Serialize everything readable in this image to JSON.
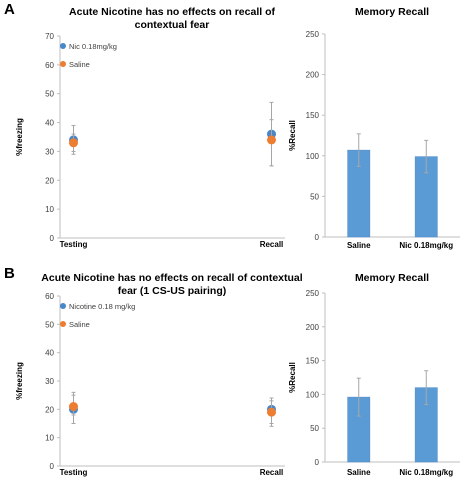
{
  "panels": [
    {
      "letter": "A"
    },
    {
      "letter": "B"
    }
  ],
  "colors": {
    "nicotine": "#4a86c8",
    "saline": "#ed7d31",
    "bar": "#5b9bd5",
    "bar_stroke": "#4a86c8",
    "error": "#a6a6a6",
    "axis": "#bfbfbf"
  },
  "chart_data": [
    {
      "id": "a-scatter",
      "type": "scatter",
      "title_lines": [
        "Acute Nicotine has no effects on recall of",
        "contextual fear"
      ],
      "xlabel": "",
      "ylabel": "%freezing",
      "ylim": [
        0,
        70
      ],
      "yticks": [
        0,
        10,
        20,
        30,
        40,
        50,
        60,
        70
      ],
      "categories": [
        "Testing",
        "Recall"
      ],
      "legend_position": "top-left",
      "series": [
        {
          "name": "Nic 0.18mg/kg",
          "color_key": "nicotine",
          "values": [
            34,
            36
          ],
          "err_low": [
            5,
            11
          ],
          "err_high": [
            5,
            11
          ]
        },
        {
          "name": "Saline",
          "color_key": "saline",
          "values": [
            33,
            34
          ],
          "err_low": [
            3,
            9
          ],
          "err_high": [
            3,
            7
          ]
        }
      ]
    },
    {
      "id": "a-bar",
      "type": "bar",
      "title_lines": [
        "Memory Recall"
      ],
      "xlabel": "",
      "ylabel": "%Recall",
      "ylim": [
        0,
        250
      ],
      "yticks": [
        0,
        50,
        100,
        150,
        200,
        250
      ],
      "categories": [
        "Saline",
        "Nic 0.18mg/kg"
      ],
      "values": [
        107,
        99
      ],
      "err_low": [
        20,
        20
      ],
      "err_high": [
        20,
        20
      ]
    },
    {
      "id": "b-scatter",
      "type": "scatter",
      "title_lines": [
        "Acute Nicotine has no effects on recall of contextual",
        "fear (1 CS-US pairing)"
      ],
      "xlabel": "",
      "ylabel": "%freezing",
      "ylim": [
        0,
        60
      ],
      "yticks": [
        0,
        10,
        20,
        30,
        40,
        50,
        60
      ],
      "categories": [
        "Testing",
        "Recall"
      ],
      "legend_position": "top-left",
      "series": [
        {
          "name": "Nicotine 0.18 mg/kg",
          "color_key": "nicotine",
          "values": [
            20,
            20
          ],
          "err_low": [
            5,
            6
          ],
          "err_high": [
            5,
            4
          ]
        },
        {
          "name": "Saline",
          "color_key": "saline",
          "values": [
            21,
            19
          ],
          "err_low": [
            3,
            4
          ],
          "err_high": [
            5,
            4
          ]
        }
      ]
    },
    {
      "id": "b-bar",
      "type": "bar",
      "title_lines": [
        "Memory Recall"
      ],
      "xlabel": "",
      "ylabel": "%Recall",
      "ylim": [
        0,
        250
      ],
      "yticks": [
        0,
        50,
        100,
        150,
        200,
        250
      ],
      "categories": [
        "Saline",
        "Nic 0.18mg/kg"
      ],
      "values": [
        96,
        110
      ],
      "err_low": [
        28,
        25
      ],
      "err_high": [
        28,
        25
      ]
    }
  ]
}
